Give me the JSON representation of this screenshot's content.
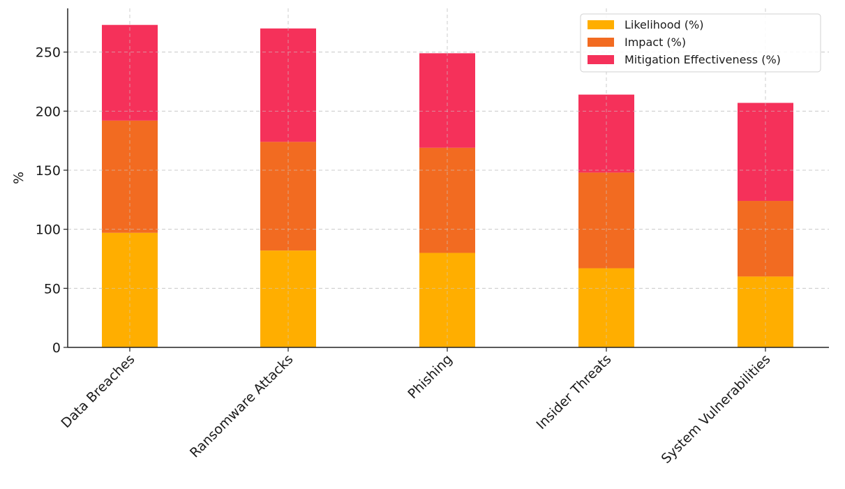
{
  "chart_data": {
    "type": "bar",
    "stacked": true,
    "categories": [
      "Data Breaches",
      "Ransomware Attacks",
      "Phishing",
      "Insider Threats",
      "System Vulnerabilities"
    ],
    "series": [
      {
        "name": "Likelihood (%)",
        "color": "#FFAE00",
        "values": [
          97,
          82,
          80,
          67,
          60
        ]
      },
      {
        "name": "Impact (%)",
        "color": "#F26B21",
        "values": [
          95,
          92,
          89,
          81,
          64
        ]
      },
      {
        "name": "Mitigation Effectiveness (%)",
        "color": "#F5315A",
        "values": [
          81,
          96,
          80,
          66,
          83
        ]
      }
    ],
    "title": "",
    "xlabel": "",
    "ylabel": "%",
    "ylim": [
      0,
      287
    ],
    "yticks": [
      0,
      50,
      100,
      150,
      200,
      250
    ],
    "grid": true,
    "legend_position": "top-right"
  }
}
